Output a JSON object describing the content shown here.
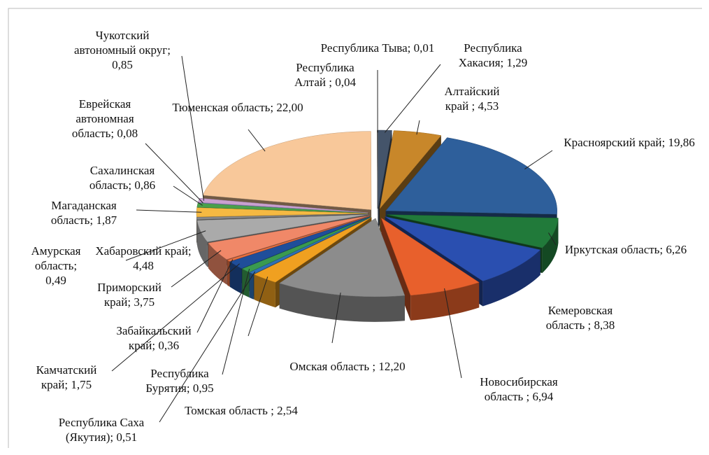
{
  "chart_data": {
    "type": "pie",
    "categories": [
      "Республика Тыва;",
      "Республика Хакасия;",
      "Алтайский край ;",
      "Красноярский край;",
      "Иркутская область;",
      "Кемеровская область ;",
      "Новосибирская область ;",
      "Омская область ;",
      "Томская область ;",
      "Республика Саха (Якутия);",
      "Республика Бурятия;",
      "Камчатский край;",
      "Забайкальский край;",
      "Приморский край;",
      "Хабаровский край;",
      "Амурская область;",
      "Магаданская область;",
      "Сахалинская область;",
      "Еврейская автономная область;",
      "Чукотский автономный округ;",
      "Тюменская область;",
      "Республика Алтай ;"
    ],
    "values": [
      0.01,
      1.29,
      4.53,
      19.86,
      6.26,
      8.38,
      6.94,
      12.2,
      2.54,
      0.51,
      0.95,
      1.75,
      0.36,
      3.75,
      4.48,
      0.49,
      1.87,
      0.86,
      0.08,
      0.85,
      22.0,
      0.04
    ],
    "value_labels": [
      "0,01",
      "1,29",
      "4,53",
      "19,86",
      "6,26",
      "8,38",
      "6,94",
      "12,20",
      "2,54",
      "0,51",
      "0,95",
      "1,75",
      "0,36",
      "3,75",
      "4,48",
      "0,49",
      "1,87",
      "0,86",
      "0,08",
      "0,85",
      "22,00",
      "0,04"
    ],
    "colors": [
      "#9a9a9a",
      "#44546a",
      "#c8872a",
      "#2e5f9b",
      "#217a3a",
      "#2a4fb0",
      "#e8602c",
      "#8c8c8c",
      "#f0a020",
      "#2f6fb5",
      "#3a9a50",
      "#1f4e9a",
      "#e87040",
      "#f08868",
      "#aaaaaa",
      "#888888",
      "#f5b942",
      "#4aa04a",
      "#7a8ad0",
      "#c9a0d0",
      "#f8c89a",
      "#555555"
    ]
  }
}
